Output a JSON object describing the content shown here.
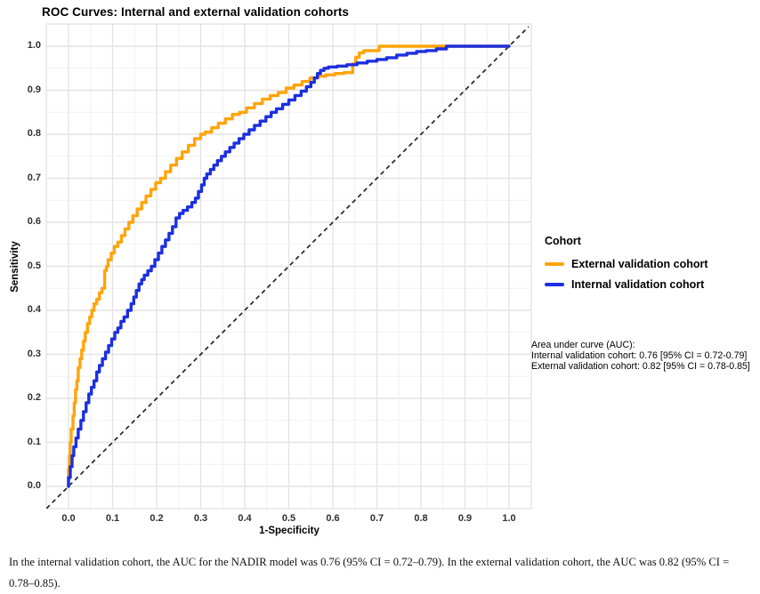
{
  "title": "ROC Curves: Internal and external validation cohorts",
  "axes": {
    "x_label": "1-Specificity",
    "y_label": "Sensitivity",
    "x_ticks": [
      "0.0",
      "0.1",
      "0.2",
      "0.3",
      "0.4",
      "0.5",
      "0.6",
      "0.7",
      "0.8",
      "0.9",
      "1.0"
    ],
    "y_ticks": [
      "0.0",
      "0.1",
      "0.2",
      "0.3",
      "0.4",
      "0.5",
      "0.6",
      "0.7",
      "0.8",
      "0.9",
      "1.0"
    ]
  },
  "legend": {
    "title": "Cohort",
    "entries": [
      {
        "label": "External validation cohort",
        "color": "#ffa40a"
      },
      {
        "label": "Internal validation cohort",
        "color": "#1c2fe0"
      }
    ]
  },
  "annotation": {
    "lines": [
      "Area under curve (AUC):",
      "Internal validation cohort: 0.76 [95% CI = 0.72-0.79]",
      "External validation cohort: 0.82 [95% CI = 0.78-0.85]"
    ]
  },
  "caption": "In the internal validation cohort, the AUC for the NADIR model was 0.76 (95% CI = 0.72–0.79). In the external validation cohort, the AUC was 0.82 (95% CI = 0.78–0.85).",
  "colors": {
    "grid_major": "#e3e3e3",
    "grid_minor": "#f0f0f0",
    "panel_border": "#dadada",
    "reference_line": "#1a1a1a",
    "tick_text": "#303030"
  },
  "chart_data": {
    "type": "line",
    "subtype": "roc-step",
    "title": "ROC Curves: Internal and external validation cohorts",
    "xlabel": "1-Specificity",
    "ylabel": "Sensitivity",
    "xlim": [
      0,
      1
    ],
    "ylim": [
      0,
      1
    ],
    "grid": true,
    "legend_position": "right",
    "reference_line": {
      "style": "dashed",
      "from": [
        0,
        0
      ],
      "to": [
        1,
        1
      ]
    },
    "series": [
      {
        "name": "External validation cohort",
        "color": "#ffa40a",
        "auc": "0.82 [95% CI = 0.78-0.85]",
        "points": [
          [
            0.0,
            0.0
          ],
          [
            0.002,
            0.04
          ],
          [
            0.004,
            0.07
          ],
          [
            0.006,
            0.1
          ],
          [
            0.01,
            0.13
          ],
          [
            0.013,
            0.16
          ],
          [
            0.016,
            0.19
          ],
          [
            0.019,
            0.22
          ],
          [
            0.022,
            0.24
          ],
          [
            0.026,
            0.27
          ],
          [
            0.03,
            0.29
          ],
          [
            0.034,
            0.31
          ],
          [
            0.038,
            0.33
          ],
          [
            0.043,
            0.35
          ],
          [
            0.048,
            0.37
          ],
          [
            0.053,
            0.385
          ],
          [
            0.058,
            0.4
          ],
          [
            0.064,
            0.415
          ],
          [
            0.07,
            0.425
          ],
          [
            0.076,
            0.44
          ],
          [
            0.082,
            0.45
          ],
          [
            0.086,
            0.49
          ],
          [
            0.09,
            0.5
          ],
          [
            0.097,
            0.515
          ],
          [
            0.104,
            0.53
          ],
          [
            0.112,
            0.545
          ],
          [
            0.12,
            0.555
          ],
          [
            0.128,
            0.57
          ],
          [
            0.137,
            0.585
          ],
          [
            0.146,
            0.6
          ],
          [
            0.156,
            0.615
          ],
          [
            0.166,
            0.63
          ],
          [
            0.176,
            0.645
          ],
          [
            0.187,
            0.66
          ],
          [
            0.198,
            0.675
          ],
          [
            0.209,
            0.69
          ],
          [
            0.22,
            0.7
          ],
          [
            0.232,
            0.715
          ],
          [
            0.245,
            0.73
          ],
          [
            0.258,
            0.745
          ],
          [
            0.272,
            0.76
          ],
          [
            0.286,
            0.775
          ],
          [
            0.3,
            0.79
          ],
          [
            0.31,
            0.8
          ],
          [
            0.325,
            0.805
          ],
          [
            0.34,
            0.815
          ],
          [
            0.356,
            0.825
          ],
          [
            0.372,
            0.835
          ],
          [
            0.388,
            0.845
          ],
          [
            0.404,
            0.85
          ],
          [
            0.422,
            0.86
          ],
          [
            0.44,
            0.87
          ],
          [
            0.458,
            0.88
          ],
          [
            0.476,
            0.888
          ],
          [
            0.494,
            0.895
          ],
          [
            0.512,
            0.905
          ],
          [
            0.53,
            0.912
          ],
          [
            0.548,
            0.92
          ],
          [
            0.566,
            0.928
          ],
          [
            0.584,
            0.932
          ],
          [
            0.605,
            0.935
          ],
          [
            0.625,
            0.938
          ],
          [
            0.645,
            0.94
          ],
          [
            0.652,
            0.96
          ],
          [
            0.66,
            0.975
          ],
          [
            0.67,
            0.985
          ],
          [
            0.68,
            0.99
          ],
          [
            0.705,
            0.99
          ],
          [
            0.712,
            1.0
          ],
          [
            1.0,
            1.0
          ]
        ]
      },
      {
        "name": "Internal validation cohort",
        "color": "#1c2fe0",
        "auc": "0.76 [95% CI = 0.72-0.79]",
        "points": [
          [
            0.0,
            0.0
          ],
          [
            0.004,
            0.02
          ],
          [
            0.008,
            0.045
          ],
          [
            0.012,
            0.07
          ],
          [
            0.017,
            0.09
          ],
          [
            0.022,
            0.11
          ],
          [
            0.028,
            0.13
          ],
          [
            0.034,
            0.15
          ],
          [
            0.04,
            0.17
          ],
          [
            0.046,
            0.19
          ],
          [
            0.052,
            0.21
          ],
          [
            0.058,
            0.225
          ],
          [
            0.064,
            0.24
          ],
          [
            0.07,
            0.26
          ],
          [
            0.077,
            0.275
          ],
          [
            0.084,
            0.29
          ],
          [
            0.091,
            0.305
          ],
          [
            0.098,
            0.32
          ],
          [
            0.105,
            0.335
          ],
          [
            0.112,
            0.35
          ],
          [
            0.119,
            0.36
          ],
          [
            0.126,
            0.375
          ],
          [
            0.134,
            0.385
          ],
          [
            0.142,
            0.4
          ],
          [
            0.148,
            0.415
          ],
          [
            0.154,
            0.43
          ],
          [
            0.16,
            0.445
          ],
          [
            0.166,
            0.46
          ],
          [
            0.172,
            0.47
          ],
          [
            0.18,
            0.48
          ],
          [
            0.188,
            0.49
          ],
          [
            0.196,
            0.5
          ],
          [
            0.204,
            0.515
          ],
          [
            0.212,
            0.53
          ],
          [
            0.22,
            0.545
          ],
          [
            0.228,
            0.56
          ],
          [
            0.236,
            0.575
          ],
          [
            0.244,
            0.59
          ],
          [
            0.252,
            0.61
          ],
          [
            0.26,
            0.62
          ],
          [
            0.27,
            0.627
          ],
          [
            0.28,
            0.635
          ],
          [
            0.288,
            0.645
          ],
          [
            0.295,
            0.655
          ],
          [
            0.302,
            0.67
          ],
          [
            0.308,
            0.685
          ],
          [
            0.314,
            0.7
          ],
          [
            0.322,
            0.71
          ],
          [
            0.33,
            0.72
          ],
          [
            0.338,
            0.73
          ],
          [
            0.347,
            0.74
          ],
          [
            0.356,
            0.75
          ],
          [
            0.366,
            0.76
          ],
          [
            0.376,
            0.77
          ],
          [
            0.387,
            0.78
          ],
          [
            0.398,
            0.79
          ],
          [
            0.41,
            0.8
          ],
          [
            0.422,
            0.81
          ],
          [
            0.435,
            0.82
          ],
          [
            0.448,
            0.83
          ],
          [
            0.46,
            0.84
          ],
          [
            0.472,
            0.85
          ],
          [
            0.486,
            0.858
          ],
          [
            0.5,
            0.868
          ],
          [
            0.514,
            0.878
          ],
          [
            0.528,
            0.888
          ],
          [
            0.54,
            0.898
          ],
          [
            0.55,
            0.908
          ],
          [
            0.558,
            0.918
          ],
          [
            0.565,
            0.928
          ],
          [
            0.572,
            0.938
          ],
          [
            0.58,
            0.945
          ],
          [
            0.59,
            0.95
          ],
          [
            0.61,
            0.953
          ],
          [
            0.632,
            0.955
          ],
          [
            0.655,
            0.958
          ],
          [
            0.678,
            0.962
          ],
          [
            0.7,
            0.966
          ],
          [
            0.722,
            0.97
          ],
          [
            0.745,
            0.974
          ],
          [
            0.768,
            0.98
          ],
          [
            0.79,
            0.984
          ],
          [
            0.812,
            0.988
          ],
          [
            0.835,
            0.99
          ],
          [
            0.858,
            0.994
          ],
          [
            0.88,
            1.0
          ],
          [
            1.0,
            1.0
          ]
        ]
      }
    ]
  }
}
